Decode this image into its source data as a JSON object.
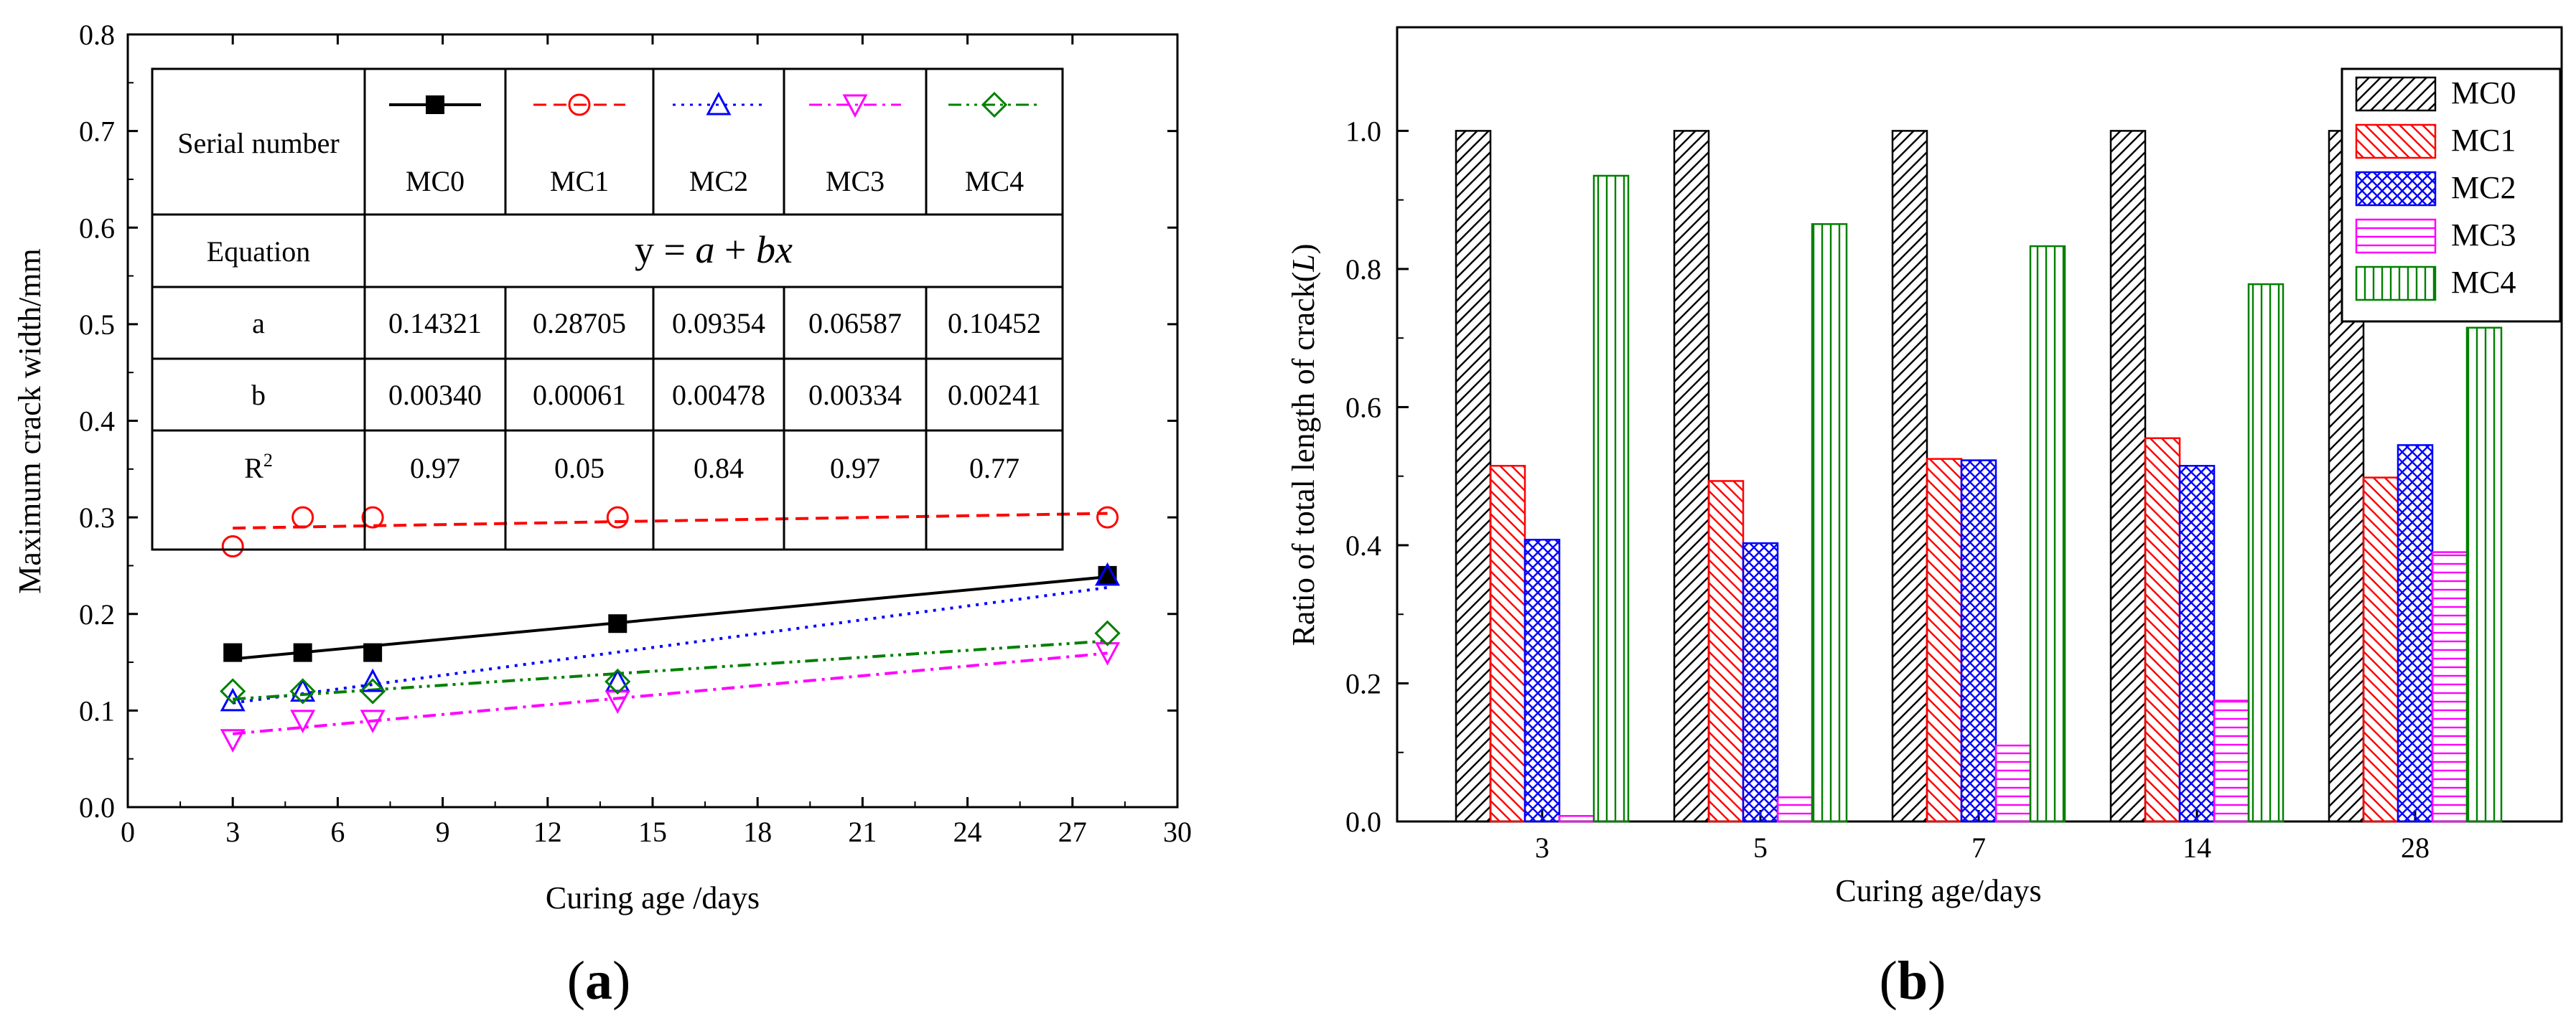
{
  "chart_data": [
    {
      "type": "scatter",
      "panel_label": "(a)",
      "panel_label_parts": [
        "(",
        "a",
        ")"
      ],
      "xlabel": "Curing age /days",
      "ylabel": "Maximum crack width/mm",
      "xlim": [
        0,
        30
      ],
      "ylim": [
        0.0,
        0.8
      ],
      "xticks": [
        0,
        3,
        6,
        9,
        12,
        15,
        18,
        21,
        24,
        27,
        30
      ],
      "yticks": [
        0.0,
        0.1,
        0.2,
        0.3,
        0.4,
        0.5,
        0.6,
        0.7,
        0.8
      ],
      "x": [
        3,
        5,
        7,
        14,
        28
      ],
      "series": [
        {
          "name": "MC0",
          "color": "#000000",
          "marker": "filled-square",
          "line": "solid",
          "values": [
            0.16,
            0.16,
            0.16,
            0.19,
            0.24
          ],
          "a": 0.14321,
          "b": 0.0034
        },
        {
          "name": "MC1",
          "color": "#ff0000",
          "marker": "open-circle",
          "line": "dashed",
          "values": [
            0.27,
            0.3,
            0.3,
            0.3,
            0.3
          ],
          "a": 0.28705,
          "b": 0.00061
        },
        {
          "name": "MC2",
          "color": "#0000ff",
          "marker": "open-triangle-up",
          "line": "dotted",
          "values": [
            0.11,
            0.12,
            0.13,
            0.13,
            0.24
          ],
          "a": 0.09354,
          "b": 0.00478
        },
        {
          "name": "MC3",
          "color": "#ff00ff",
          "marker": "open-triangle-down",
          "line": "dash-dot",
          "values": [
            0.07,
            0.09,
            0.09,
            0.11,
            0.16
          ],
          "a": 0.06587,
          "b": 0.00334
        },
        {
          "name": "MC4",
          "color": "#008000",
          "marker": "open-diamond",
          "line": "dash-dot-dot",
          "values": [
            0.12,
            0.12,
            0.12,
            0.13,
            0.18
          ],
          "a": 0.10452,
          "b": 0.00241
        }
      ],
      "table": {
        "row_serial": "Serial number",
        "row_equation": "Equation",
        "equation_parts": [
          "y = ",
          "a",
          " + ",
          "bx"
        ],
        "row_a": "a",
        "row_b": "b",
        "row_r2_base": "R",
        "row_r2_sup": "2",
        "names": [
          "MC0",
          "MC1",
          "MC2",
          "MC3",
          "MC4"
        ],
        "a_values": [
          "0.14321",
          "0.28705",
          "0.09354",
          "0.06587",
          "0.10452"
        ],
        "b_values": [
          "0.00340",
          "0.00061",
          "0.00478",
          "0.00334",
          "0.00241"
        ],
        "r2_values": [
          "0.97",
          "0.05",
          "0.84",
          "0.97",
          "0.77"
        ]
      }
    },
    {
      "type": "bar",
      "panel_label": "(b)",
      "panel_label_parts": [
        "(",
        "b",
        ")"
      ],
      "xlabel": "Curing age/days",
      "ylabel": "Ratio of total length of crack(L)",
      "ylabel_parts": [
        "Ratio of total length of crack(",
        "L",
        ")"
      ],
      "ylim": [
        0.0,
        1.15
      ],
      "yticks": [
        0.0,
        0.2,
        0.4,
        0.6,
        0.8,
        1.0
      ],
      "categories": [
        "3",
        "5",
        "7",
        "14",
        "28"
      ],
      "legend_position": "top-right",
      "series": [
        {
          "name": "MC0",
          "color": "#000000",
          "hatch": "diagonal-right",
          "values": [
            1.0,
            1.0,
            1.0,
            1.0,
            1.0
          ]
        },
        {
          "name": "MC1",
          "color": "#ff0000",
          "hatch": "diagonal-left",
          "values": [
            0.515,
            0.493,
            0.525,
            0.555,
            0.498
          ]
        },
        {
          "name": "MC2",
          "color": "#0000ff",
          "hatch": "crosshatch",
          "values": [
            0.408,
            0.403,
            0.523,
            0.515,
            0.545
          ]
        },
        {
          "name": "MC3",
          "color": "#ff00ff",
          "hatch": "horizontal",
          "values": [
            0.008,
            0.035,
            0.11,
            0.175,
            0.39
          ]
        },
        {
          "name": "MC4",
          "color": "#008000",
          "hatch": "vertical",
          "values": [
            0.935,
            0.865,
            0.833,
            0.778,
            0.715
          ]
        }
      ]
    }
  ]
}
